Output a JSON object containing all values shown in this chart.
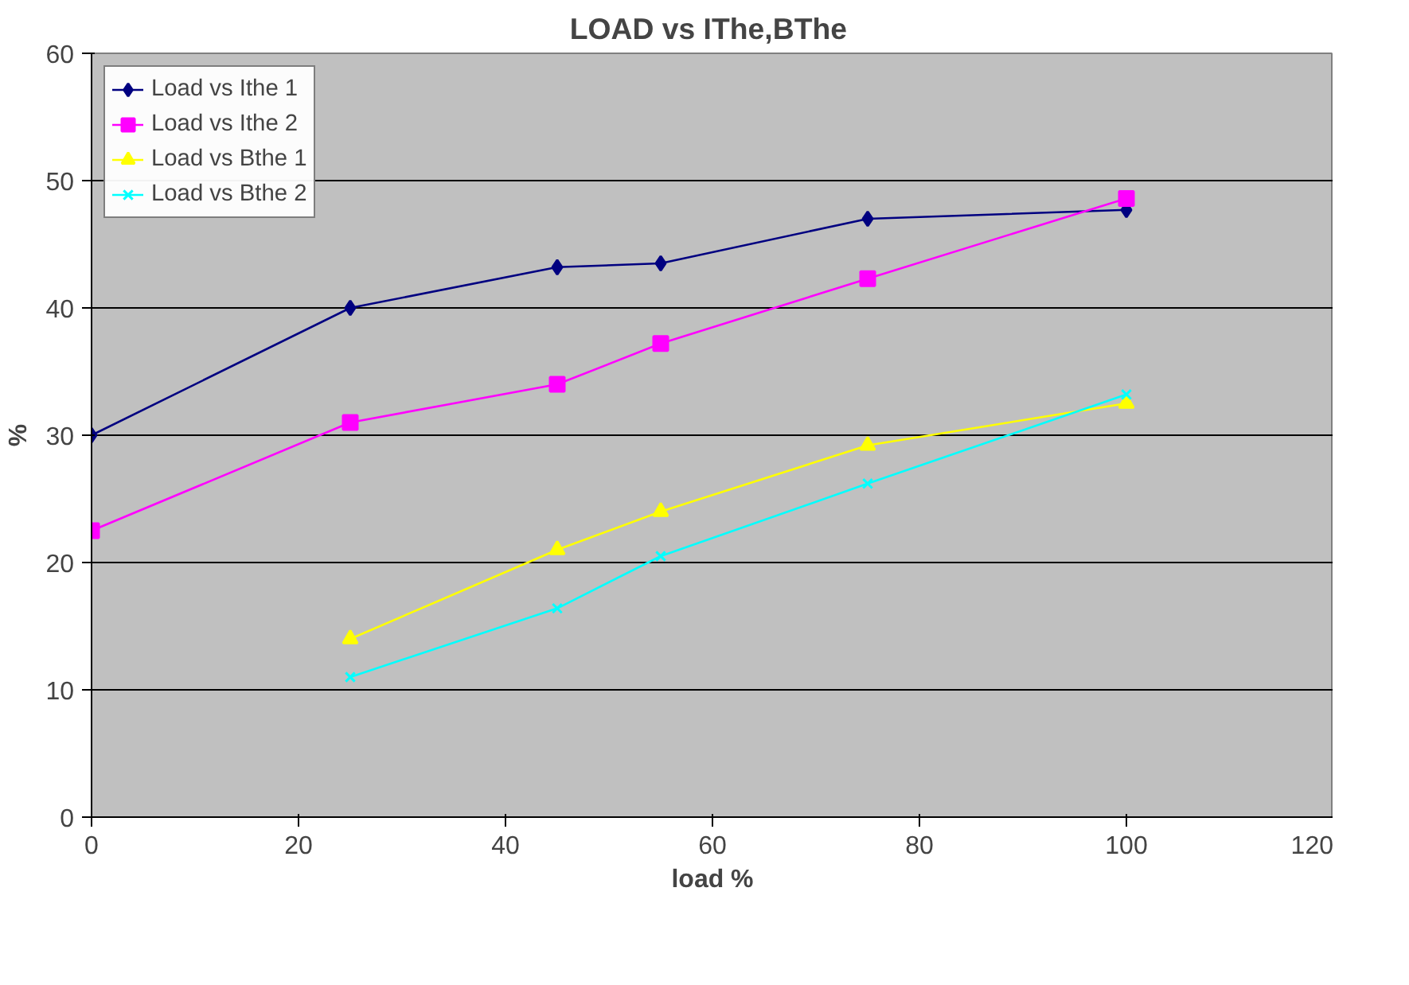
{
  "chart_data": {
    "type": "line",
    "title": "LOAD  vs IThe,BThe",
    "xlabel": "load %",
    "ylabel": "%",
    "xlim": [
      0,
      120
    ],
    "xticks": [
      0,
      20,
      40,
      60,
      80,
      100,
      120
    ],
    "ylim": [
      0,
      60
    ],
    "yticks": [
      0,
      10,
      20,
      30,
      40,
      50,
      60
    ],
    "grid": "y",
    "legend": "top left",
    "line_style": "solid",
    "series": [
      {
        "name": "Load vs Ithe 1",
        "color": "#000080",
        "marker": "diamond",
        "x": [
          0,
          25,
          45,
          55,
          75,
          100
        ],
        "values": [
          30,
          40,
          43.2,
          43.5,
          47,
          47.7
        ]
      },
      {
        "name": "Load vs Ithe 2",
        "color": "#ff00ff",
        "marker": "square",
        "x": [
          0,
          25,
          45,
          55,
          75,
          100
        ],
        "values": [
          22.5,
          31,
          34,
          37.2,
          42.3,
          48.6
        ]
      },
      {
        "name": "Load vs Bthe 1",
        "color": "#ffff00",
        "marker": "triangle",
        "x": [
          25,
          45,
          55,
          75,
          100
        ],
        "values": [
          14,
          21,
          24,
          29.2,
          32.5
        ]
      },
      {
        "name": "Load vs Bthe 2",
        "color": "#00ffff",
        "marker": "cross",
        "x": [
          25,
          45,
          55,
          75,
          100
        ],
        "values": [
          11,
          16.4,
          20.5,
          26.2,
          33.2
        ]
      }
    ]
  }
}
